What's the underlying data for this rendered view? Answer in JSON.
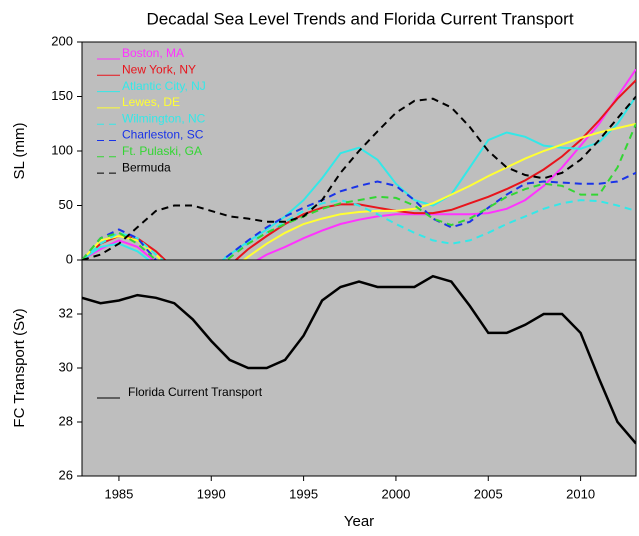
{
  "chart_data": [
    {
      "type": "line",
      "title": "Decadal Sea Level Trends and Florida Current Transport",
      "ylabel": "SL (mm)",
      "xlim": [
        1983,
        2013
      ],
      "ylim": [
        0,
        200
      ],
      "yticks": [
        0,
        50,
        100,
        150,
        200
      ],
      "legend": "upper left",
      "background": "#bebebe",
      "x": [
        1983,
        1984,
        1985,
        1986,
        1987,
        1988,
        1989,
        1990,
        1991,
        1992,
        1993,
        1994,
        1995,
        1996,
        1997,
        1998,
        1999,
        2000,
        2001,
        2002,
        2003,
        2004,
        2005,
        2006,
        2007,
        2008,
        2009,
        2010,
        2011,
        2012,
        2013
      ],
      "series": [
        {
          "name": "Boston, MA",
          "color": "#ff33ff",
          "style": "solid",
          "values": [
            0,
            10,
            18,
            12,
            -2,
            -20,
            -30,
            -28,
            -18,
            -5,
            5,
            12,
            20,
            27,
            33,
            37,
            40,
            42,
            42,
            42,
            42,
            42,
            43,
            47,
            55,
            68,
            85,
            105,
            125,
            150,
            175
          ]
        },
        {
          "name": "New York, NY",
          "color": "#e8141c",
          "style": "solid",
          "values": [
            0,
            15,
            22,
            20,
            8,
            -8,
            -20,
            -18,
            -5,
            10,
            22,
            33,
            42,
            48,
            51,
            51,
            48,
            45,
            43,
            43,
            46,
            52,
            58,
            65,
            73,
            83,
            95,
            110,
            128,
            148,
            165
          ]
        },
        {
          "name": "Atlantic City, NJ",
          "color": "#33e8e8",
          "style": "solid",
          "values": [
            0,
            12,
            15,
            8,
            -5,
            -15,
            -18,
            -8,
            5,
            17,
            28,
            40,
            55,
            75,
            98,
            103,
            92,
            70,
            55,
            50,
            60,
            85,
            110,
            117,
            113,
            105,
            103,
            102,
            108,
            125,
            150
          ]
        },
        {
          "name": "Lewes, DE",
          "color": "#ffff33",
          "style": "solid",
          "values": [
            0,
            18,
            22,
            18,
            5,
            -12,
            -22,
            -20,
            -10,
            3,
            15,
            25,
            33,
            38,
            42,
            44,
            45,
            45,
            47,
            52,
            60,
            68,
            77,
            85,
            93,
            100,
            106,
            112,
            117,
            121,
            125
          ]
        },
        {
          "name": "Wilmington, NC",
          "color": "#33e8e8",
          "style": "dashed",
          "values": [
            0,
            15,
            25,
            20,
            5,
            -8,
            -12,
            -5,
            5,
            15,
            25,
            35,
            45,
            52,
            55,
            50,
            42,
            33,
            25,
            18,
            15,
            18,
            25,
            33,
            40,
            47,
            52,
            55,
            54,
            50,
            45
          ]
        },
        {
          "name": "Charleston, SC",
          "color": "#1a33e8",
          "style": "dashed",
          "values": [
            0,
            20,
            28,
            20,
            0,
            -15,
            -15,
            -8,
            5,
            18,
            30,
            40,
            48,
            55,
            63,
            68,
            72,
            68,
            55,
            38,
            30,
            35,
            48,
            60,
            70,
            72,
            71,
            70,
            70,
            72,
            80
          ]
        },
        {
          "name": "Ft. Pulaski, GA",
          "color": "#33d633",
          "style": "dashed",
          "values": [
            0,
            20,
            25,
            15,
            0,
            -15,
            -20,
            -12,
            2,
            15,
            25,
            33,
            40,
            47,
            52,
            55,
            58,
            57,
            50,
            38,
            32,
            38,
            48,
            58,
            65,
            70,
            68,
            60,
            60,
            85,
            125
          ]
        },
        {
          "name": "Bermuda",
          "color": "#000000",
          "style": "dashed",
          "values": [
            0,
            5,
            15,
            30,
            45,
            50,
            50,
            45,
            40,
            38,
            35,
            35,
            40,
            55,
            80,
            100,
            118,
            135,
            146,
            148,
            140,
            122,
            100,
            85,
            78,
            75,
            80,
            92,
            110,
            130,
            150
          ]
        }
      ]
    },
    {
      "type": "line",
      "ylabel": "FC Transport (Sv)",
      "xlabel": "Year",
      "xlim": [
        1983,
        2013
      ],
      "xticks": [
        1985,
        1990,
        1995,
        2000,
        2005,
        2010
      ],
      "ylim": [
        26,
        34
      ],
      "yticks": [
        26,
        28,
        30,
        32
      ],
      "legend": "lower left",
      "background": "#bebebe",
      "x": [
        1983,
        1984,
        1985,
        1986,
        1987,
        1988,
        1989,
        1990,
        1991,
        1992,
        1993,
        1994,
        1995,
        1996,
        1997,
        1998,
        1999,
        2000,
        2001,
        2002,
        2003,
        2004,
        2005,
        2006,
        2007,
        2008,
        2009,
        2010,
        2011,
        2012,
        2013
      ],
      "series": [
        {
          "name": "Florida Current Transport",
          "color": "#000000",
          "style": "solid",
          "values": [
            32.6,
            32.4,
            32.5,
            32.7,
            32.6,
            32.4,
            31.8,
            31.0,
            30.3,
            30.0,
            30.0,
            30.3,
            31.2,
            32.5,
            33.0,
            33.2,
            33.0,
            33.0,
            33.0,
            33.4,
            33.2,
            32.3,
            31.3,
            31.3,
            31.6,
            32.0,
            32.0,
            31.3,
            29.6,
            28.0,
            27.2
          ]
        }
      ]
    }
  ]
}
